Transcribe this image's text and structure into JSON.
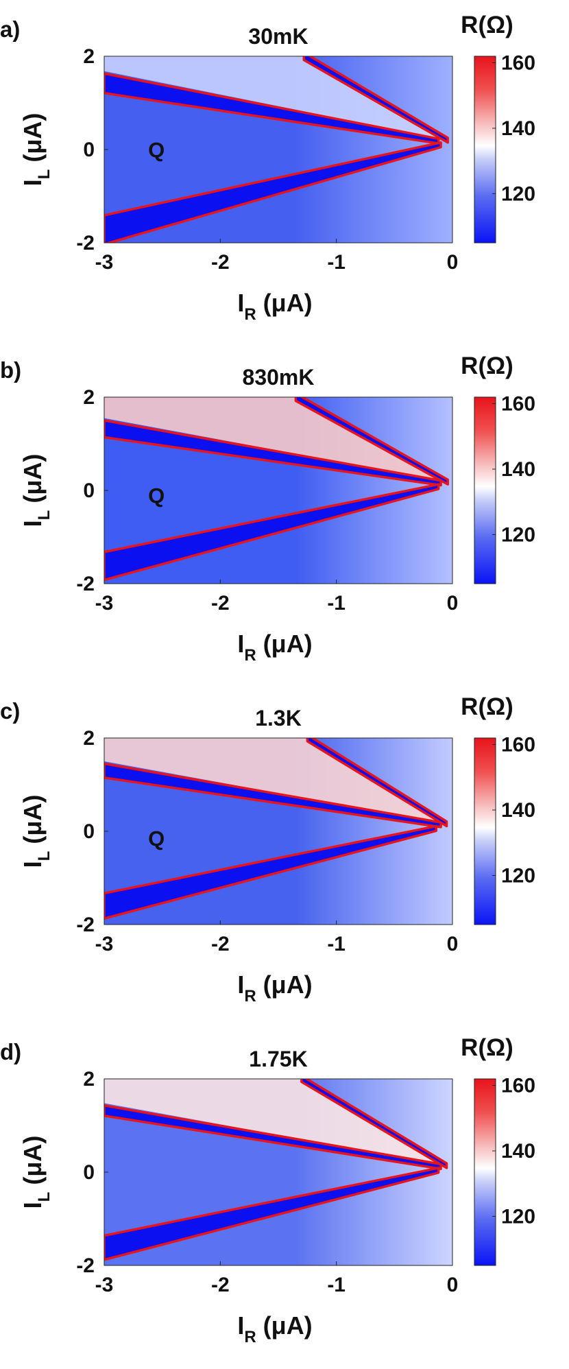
{
  "figure": {
    "panels_count": 4
  },
  "chart_data": [
    {
      "type": "heatmap",
      "panel_label": "a)",
      "title": "30mK",
      "xlabel": {
        "main": "I",
        "sub": "R",
        "unit": " (μA)"
      },
      "ylabel": {
        "main": "I",
        "sub": "L",
        "unit": " (μA)"
      },
      "xlim": [
        -3,
        0
      ],
      "ylim": [
        -2,
        2
      ],
      "xticks": [
        -3,
        -2,
        -1,
        0
      ],
      "xtick_labels": [
        "-3",
        "-2",
        "-1",
        "0"
      ],
      "yticks": [
        -2,
        0,
        2
      ],
      "ytick_labels": [
        "-2",
        "0",
        "2"
      ],
      "colorbar": {
        "label": "R(Ω)",
        "range": [
          105,
          162
        ],
        "ticks": [
          120,
          140,
          160
        ],
        "tick_labels": [
          "120",
          "140",
          "160"
        ]
      },
      "region_label": {
        "text": "Q",
        "x": -2.55,
        "y": 0.0
      },
      "bands": [
        {
          "name": "upper-blue-band",
          "from": [
            -3,
            1.42
          ],
          "to": [
            -0.12,
            0.18
          ],
          "width": 0.42,
          "edge": "red"
        },
        {
          "name": "lower-blue-band",
          "from": [
            -3,
            -1.72
          ],
          "to": [
            -0.1,
            0.1
          ],
          "width": 0.62,
          "edge": "red"
        },
        {
          "name": "steep-blue-band",
          "from": [
            -1.28,
            2.0
          ],
          "to": [
            -0.04,
            0.2
          ],
          "width": 0.16,
          "edge": "red"
        }
      ],
      "background": {
        "left": "#4560f0",
        "right": "#9fb0ff",
        "wedge": "#c9d2ff"
      }
    },
    {
      "type": "heatmap",
      "panel_label": "b)",
      "title": "830mK",
      "xlabel": {
        "main": "I",
        "sub": "R",
        "unit": " (μA)"
      },
      "ylabel": {
        "main": "I",
        "sub": "L",
        "unit": " (μA)"
      },
      "xlim": [
        -3,
        0
      ],
      "ylim": [
        -2,
        2
      ],
      "xticks": [
        -3,
        -2,
        -1,
        0
      ],
      "xtick_labels": [
        "-3",
        "-2",
        "-1",
        "0"
      ],
      "yticks": [
        -2,
        0,
        2
      ],
      "ytick_labels": [
        "-2",
        "0",
        "2"
      ],
      "colorbar": {
        "label": "R(Ω)",
        "range": [
          105,
          162
        ],
        "ticks": [
          120,
          140,
          160
        ],
        "tick_labels": [
          "120",
          "140",
          "160"
        ]
      },
      "region_label": {
        "text": "Q",
        "x": -2.55,
        "y": -0.1
      },
      "bands": [
        {
          "name": "upper-blue-band",
          "from": [
            -3,
            1.32
          ],
          "to": [
            -0.1,
            0.16
          ],
          "width": 0.36,
          "edge": "red"
        },
        {
          "name": "lower-blue-band",
          "from": [
            -3,
            -1.62
          ],
          "to": [
            -0.12,
            0.08
          ],
          "width": 0.6,
          "edge": "red"
        },
        {
          "name": "steep-blue-band",
          "from": [
            -1.35,
            2.0
          ],
          "to": [
            -0.04,
            0.18
          ],
          "width": 0.16,
          "edge": "red"
        }
      ],
      "background": {
        "left": "#3f5df2",
        "right": "#b4c0ff",
        "wedge": "#f6c9c9"
      }
    },
    {
      "type": "heatmap",
      "panel_label": "c)",
      "title": "1.3K",
      "xlabel": {
        "main": "I",
        "sub": "R",
        "unit": " (μA)"
      },
      "ylabel": {
        "main": "I",
        "sub": "L",
        "unit": " (μA)"
      },
      "xlim": [
        -3,
        0
      ],
      "ylim": [
        -2,
        2
      ],
      "xticks": [
        -3,
        -2,
        -1,
        0
      ],
      "xtick_labels": [
        "-3",
        "-2",
        "-1",
        "0"
      ],
      "yticks": [
        -2,
        0,
        2
      ],
      "ytick_labels": [
        "-2",
        "0",
        "2"
      ],
      "colorbar": {
        "label": "R(Ω)",
        "range": [
          105,
          162
        ],
        "ticks": [
          120,
          140,
          160
        ],
        "tick_labels": [
          "120",
          "140",
          "160"
        ]
      },
      "region_label": {
        "text": "Q",
        "x": -2.55,
        "y": -0.15
      },
      "bands": [
        {
          "name": "upper-blue-band",
          "from": [
            -3,
            1.3
          ],
          "to": [
            -0.1,
            0.14
          ],
          "width": 0.3,
          "edge": "red"
        },
        {
          "name": "lower-blue-band",
          "from": [
            -3,
            -1.6
          ],
          "to": [
            -0.14,
            0.06
          ],
          "width": 0.54,
          "edge": "red"
        },
        {
          "name": "steep-blue-band",
          "from": [
            -1.25,
            2.0
          ],
          "to": [
            -0.05,
            0.16
          ],
          "width": 0.14,
          "edge": "red"
        }
      ],
      "background": {
        "left": "#4662ee",
        "right": "#c2cbff",
        "wedge": "#f8d3d3"
      }
    },
    {
      "type": "heatmap",
      "panel_label": "d)",
      "title": "1.75K",
      "xlabel": {
        "main": "I",
        "sub": "R",
        "unit": " (μA)"
      },
      "ylabel": {
        "main": "I",
        "sub": "L",
        "unit": " (μA)"
      },
      "xlim": [
        -3,
        0
      ],
      "ylim": [
        -2,
        2
      ],
      "xticks": [
        -3,
        -2,
        -1,
        0
      ],
      "xtick_labels": [
        "-3",
        "-2",
        "-1",
        "0"
      ],
      "yticks": [
        -2,
        0,
        2
      ],
      "ytick_labels": [
        "-2",
        "0",
        "2"
      ],
      "colorbar": {
        "label": "R(Ω)",
        "range": [
          105,
          162
        ],
        "ticks": [
          120,
          140,
          160
        ],
        "tick_labels": [
          "120",
          "140",
          "160"
        ]
      },
      "bands": [
        {
          "name": "upper-blue-band",
          "from": [
            -3,
            1.32
          ],
          "to": [
            -0.1,
            0.12
          ],
          "width": 0.22,
          "edge": "red"
        },
        {
          "name": "lower-blue-band",
          "from": [
            -3,
            -1.62
          ],
          "to": [
            -0.12,
            0.04
          ],
          "width": 0.52,
          "edge": "red"
        },
        {
          "name": "steep-blue-band",
          "from": [
            -1.3,
            2.0
          ],
          "to": [
            -0.05,
            0.14
          ],
          "width": 0.13,
          "edge": "red"
        }
      ],
      "background": {
        "left": "#5b73f0",
        "right": "#cdd5ff",
        "wedge": "#fbe4e4"
      }
    }
  ]
}
